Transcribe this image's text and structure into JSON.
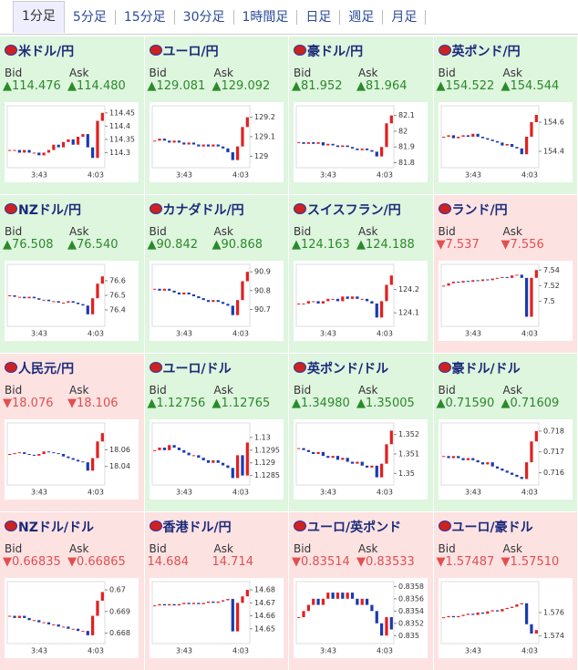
{
  "tabs": [
    "1分足",
    "5分足",
    "15分足",
    "30分足",
    "1時間足",
    "日足",
    "週足",
    "月足"
  ],
  "bid_label": "Bid",
  "ask_label": "Ask",
  "xticks": [
    "3:43",
    "4:03"
  ],
  "panels": [
    {
      "title": "米ドル/円",
      "bid": "▲114.476",
      "ask": "▲114.480",
      "trend": "up",
      "ylim": [
        114.25,
        114.47
      ],
      "yticks": [
        114.3,
        114.35,
        114.4,
        114.45
      ],
      "values": [
        114.31,
        114.31,
        114.3,
        114.31,
        114.3,
        114.3,
        114.29,
        114.3,
        114.31,
        114.33,
        114.32,
        114.34,
        114.35,
        114.33,
        114.36,
        114.37,
        114.32,
        114.28,
        114.42,
        114.45
      ]
    },
    {
      "title": "ユーロ/円",
      "bid": "▲129.081",
      "ask": "▲129.092",
      "trend": "up",
      "ylim": [
        128.95,
        129.25
      ],
      "yticks": [
        129,
        129.1,
        129.2
      ],
      "values": [
        129.08,
        129.09,
        129.08,
        129.07,
        129.08,
        129.07,
        129.06,
        129.07,
        129.06,
        129.05,
        129.06,
        129.05,
        129.06,
        129.05,
        129.04,
        129.02,
        128.98,
        129.05,
        129.15,
        129.2
      ]
    },
    {
      "title": "豪ドル/円",
      "bid": "▲81.952",
      "ask": "▲81.964",
      "trend": "up",
      "ylim": [
        81.78,
        82.15
      ],
      "yticks": [
        81.8,
        81.9,
        82,
        82.1
      ],
      "values": [
        81.93,
        81.92,
        81.93,
        81.92,
        81.93,
        81.91,
        81.92,
        81.91,
        81.9,
        81.91,
        81.9,
        81.89,
        81.88,
        81.89,
        81.88,
        81.87,
        81.84,
        81.9,
        82.05,
        82.1
      ]
    },
    {
      "title": "英ポンド/円",
      "bid": "▲154.522",
      "ask": "▲154.544",
      "trend": "up",
      "ylim": [
        154.3,
        154.7
      ],
      "yticks": [
        154.4,
        154.6
      ],
      "values": [
        154.5,
        154.51,
        154.49,
        154.5,
        154.51,
        154.5,
        154.52,
        154.5,
        154.49,
        154.48,
        154.47,
        154.46,
        154.44,
        154.45,
        154.43,
        154.42,
        154.38,
        154.5,
        154.6,
        154.65
      ]
    },
    {
      "title": "NZドル/円",
      "bid": "▲76.508",
      "ask": "▲76.540",
      "trend": "up",
      "ylim": [
        76.3,
        76.7
      ],
      "yticks": [
        76.4,
        76.5,
        76.6
      ],
      "values": [
        76.5,
        76.49,
        76.49,
        76.48,
        76.49,
        76.48,
        76.47,
        76.47,
        76.46,
        76.46,
        76.45,
        76.45,
        76.46,
        76.45,
        76.44,
        76.43,
        76.37,
        76.48,
        76.58,
        76.63
      ]
    },
    {
      "title": "カナダドル/円",
      "bid": "▲90.842",
      "ask": "▲90.868",
      "trend": "up",
      "ylim": [
        90.62,
        90.93
      ],
      "yticks": [
        90.7,
        90.8,
        90.9
      ],
      "values": [
        90.81,
        90.8,
        90.81,
        90.8,
        90.79,
        90.78,
        90.79,
        90.78,
        90.77,
        90.76,
        90.75,
        90.74,
        90.75,
        90.74,
        90.73,
        90.72,
        90.67,
        90.75,
        90.85,
        90.9
      ]
    },
    {
      "title": "スイスフラン/円",
      "bid": "▲124.163",
      "ask": "▲124.188",
      "trend": "up",
      "ylim": [
        124.05,
        124.3
      ],
      "yticks": [
        124.1,
        124.2
      ],
      "values": [
        124.14,
        124.14,
        124.15,
        124.15,
        124.14,
        124.15,
        124.16,
        124.16,
        124.15,
        124.17,
        124.16,
        124.17,
        124.16,
        124.16,
        124.15,
        124.14,
        124.08,
        124.15,
        124.22,
        124.26
      ]
    },
    {
      "title": "ランド/円",
      "bid": "▼7.537",
      "ask": "▼7.556",
      "trend": "down",
      "ylim": [
        7.47,
        7.545
      ],
      "yticks": [
        7.5,
        7.52,
        7.54
      ],
      "values": [
        7.52,
        7.523,
        7.525,
        7.524,
        7.526,
        7.525,
        7.527,
        7.526,
        7.528,
        7.527,
        7.529,
        7.53,
        7.531,
        7.53,
        7.533,
        7.534,
        7.53,
        7.48,
        7.53,
        7.54
      ]
    },
    {
      "title": "人民元/円",
      "bid": "▼18.076",
      "ask": "▼18.106",
      "trend": "down",
      "ylim": [
        18.02,
        18.09
      ],
      "yticks": [
        18.04,
        18.06
      ],
      "values": [
        18.055,
        18.056,
        18.057,
        18.055,
        18.054,
        18.053,
        18.055,
        18.058,
        18.057,
        18.056,
        18.055,
        18.052,
        18.05,
        18.048,
        18.046,
        18.045,
        18.035,
        18.05,
        18.07,
        18.08
      ]
    },
    {
      "title": "ユーロ/ドル",
      "bid": "▲1.12756",
      "ask": "▲1.12765",
      "trend": "up",
      "ylim": [
        1.1282,
        1.1305
      ],
      "yticks": [
        1.1285,
        1.129,
        1.1295,
        1.13
      ],
      "values": [
        1.1295,
        1.1296,
        1.1295,
        1.1297,
        1.1296,
        1.1295,
        1.1294,
        1.1293,
        1.1293,
        1.1292,
        1.1291,
        1.129,
        1.1291,
        1.129,
        1.1289,
        1.1288,
        1.1284,
        1.1293,
        1.1285,
        1.1298
      ]
    },
    {
      "title": "英ポンド/ドル",
      "bid": "▲1.34980",
      "ask": "▲1.35005",
      "trend": "up",
      "ylim": [
        1.3495,
        1.3525
      ],
      "yticks": [
        1.35,
        1.351,
        1.352
      ],
      "values": [
        1.3513,
        1.3512,
        1.3511,
        1.351,
        1.3511,
        1.3509,
        1.3508,
        1.3509,
        1.3507,
        1.3508,
        1.3506,
        1.3505,
        1.3506,
        1.3504,
        1.3503,
        1.3504,
        1.3498,
        1.3505,
        1.3515,
        1.3522
      ]
    },
    {
      "title": "豪ドル/ドル",
      "bid": "▲0.71590",
      "ask": "▲0.71609",
      "trend": "up",
      "ylim": [
        0.7155,
        0.7183
      ],
      "yticks": [
        0.716,
        0.717,
        0.718
      ],
      "values": [
        0.7168,
        0.7167,
        0.7168,
        0.7167,
        0.7166,
        0.7167,
        0.7166,
        0.7165,
        0.7164,
        0.7165,
        0.7163,
        0.7162,
        0.7161,
        0.716,
        0.7159,
        0.7158,
        0.7157,
        0.7165,
        0.7175,
        0.718
      ]
    },
    {
      "title": "NZドル/ドル",
      "bid": "▼0.66835",
      "ask": "▼0.66865",
      "trend": "down",
      "ylim": [
        0.6676,
        0.6703
      ],
      "yticks": [
        0.668,
        0.669,
        0.67
      ],
      "values": [
        0.6688,
        0.6687,
        0.6688,
        0.6687,
        0.6686,
        0.6686,
        0.6685,
        0.6685,
        0.6684,
        0.6684,
        0.6683,
        0.6683,
        0.6682,
        0.6682,
        0.6681,
        0.6681,
        0.6679,
        0.6688,
        0.6695,
        0.6699
      ]
    },
    {
      "title": "香港ドル/円",
      "bid": "14.684",
      "ask": "14.714",
      "trend": "down",
      "ylim": [
        14.64,
        14.685
      ],
      "yticks": [
        14.65,
        14.66,
        14.67,
        14.68
      ],
      "values": [
        14.668,
        14.669,
        14.668,
        14.669,
        14.668,
        14.669,
        14.67,
        14.669,
        14.67,
        14.669,
        14.67,
        14.671,
        14.67,
        14.671,
        14.672,
        14.673,
        14.648,
        14.67,
        14.675,
        14.68
      ]
    },
    {
      "title": "ユーロ/英ポンド",
      "bid": "▼0.83514",
      "ask": "▼0.83533",
      "trend": "down",
      "ylim": [
        0.8349,
        0.83585
      ],
      "yticks": [
        0.835,
        0.8352,
        0.8354,
        0.8356,
        0.8358
      ],
      "values": [
        0.8353,
        0.8354,
        0.8355,
        0.8356,
        0.8355,
        0.8356,
        0.8357,
        0.8356,
        0.8357,
        0.8356,
        0.8357,
        0.8356,
        0.8355,
        0.8356,
        0.8355,
        0.8354,
        0.8352,
        0.835,
        0.8353,
        0.8351
      ]
    },
    {
      "title": "ユーロ/豪ドル",
      "bid": "▼1.57487",
      "ask": "▼1.57510",
      "trend": "down",
      "ylim": [
        1.5735,
        1.5785
      ],
      "yticks": [
        1.574,
        1.576
      ],
      "values": [
        1.5756,
        1.5757,
        1.5756,
        1.5757,
        1.5758,
        1.5759,
        1.5758,
        1.576,
        1.5759,
        1.5761,
        1.5762,
        1.5761,
        1.5763,
        1.5764,
        1.5765,
        1.5767,
        1.5768,
        1.575,
        1.5742,
        1.5745
      ]
    }
  ]
}
